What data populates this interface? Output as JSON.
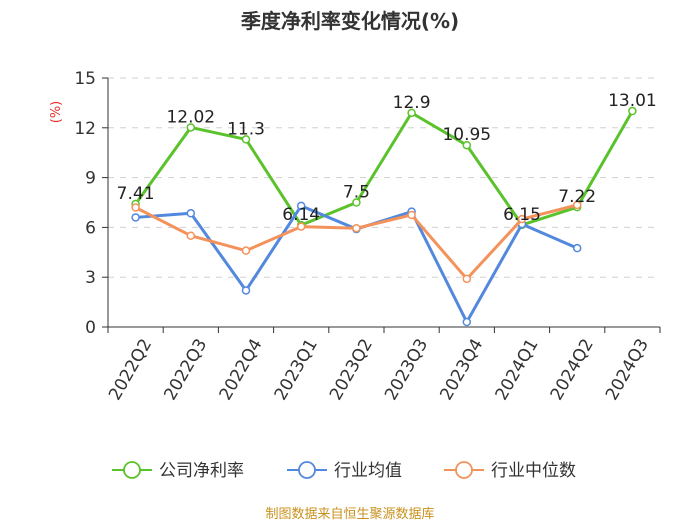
{
  "chart_data": {
    "type": "line",
    "title": "季度净利率变化情况(%)",
    "ylabel": "(%)",
    "categories": [
      "2022Q2",
      "2022Q3",
      "2022Q4",
      "2023Q1",
      "2023Q2",
      "2023Q3",
      "2023Q4",
      "2024Q1",
      "2024Q2",
      "2024Q3"
    ],
    "ylim": [
      0,
      15
    ],
    "yticks": [
      0,
      3,
      6,
      9,
      12,
      15
    ],
    "grid": true,
    "legend_position": "bottom",
    "series": [
      {
        "name": "公司净利率",
        "color": "#5ac22b",
        "values": [
          7.41,
          12.02,
          11.3,
          6.14,
          7.5,
          12.9,
          10.95,
          6.15,
          7.22,
          13.01
        ],
        "labels": [
          "7.41",
          "12.02",
          "11.3",
          "6.14",
          "7.5",
          "12.9",
          "10.95",
          "6.15",
          "7.22",
          "13.01"
        ]
      },
      {
        "name": "行业均值",
        "color": "#5288dd",
        "values": [
          6.6,
          6.85,
          2.2,
          7.3,
          5.9,
          6.95,
          0.3,
          6.2,
          4.75,
          null
        ]
      },
      {
        "name": "行业中位数",
        "color": "#f4925c",
        "values": [
          7.2,
          5.5,
          4.6,
          6.05,
          5.95,
          6.75,
          2.9,
          6.5,
          7.35,
          null
        ]
      }
    ]
  },
  "source": "制图数据来自恒生聚源数据库"
}
